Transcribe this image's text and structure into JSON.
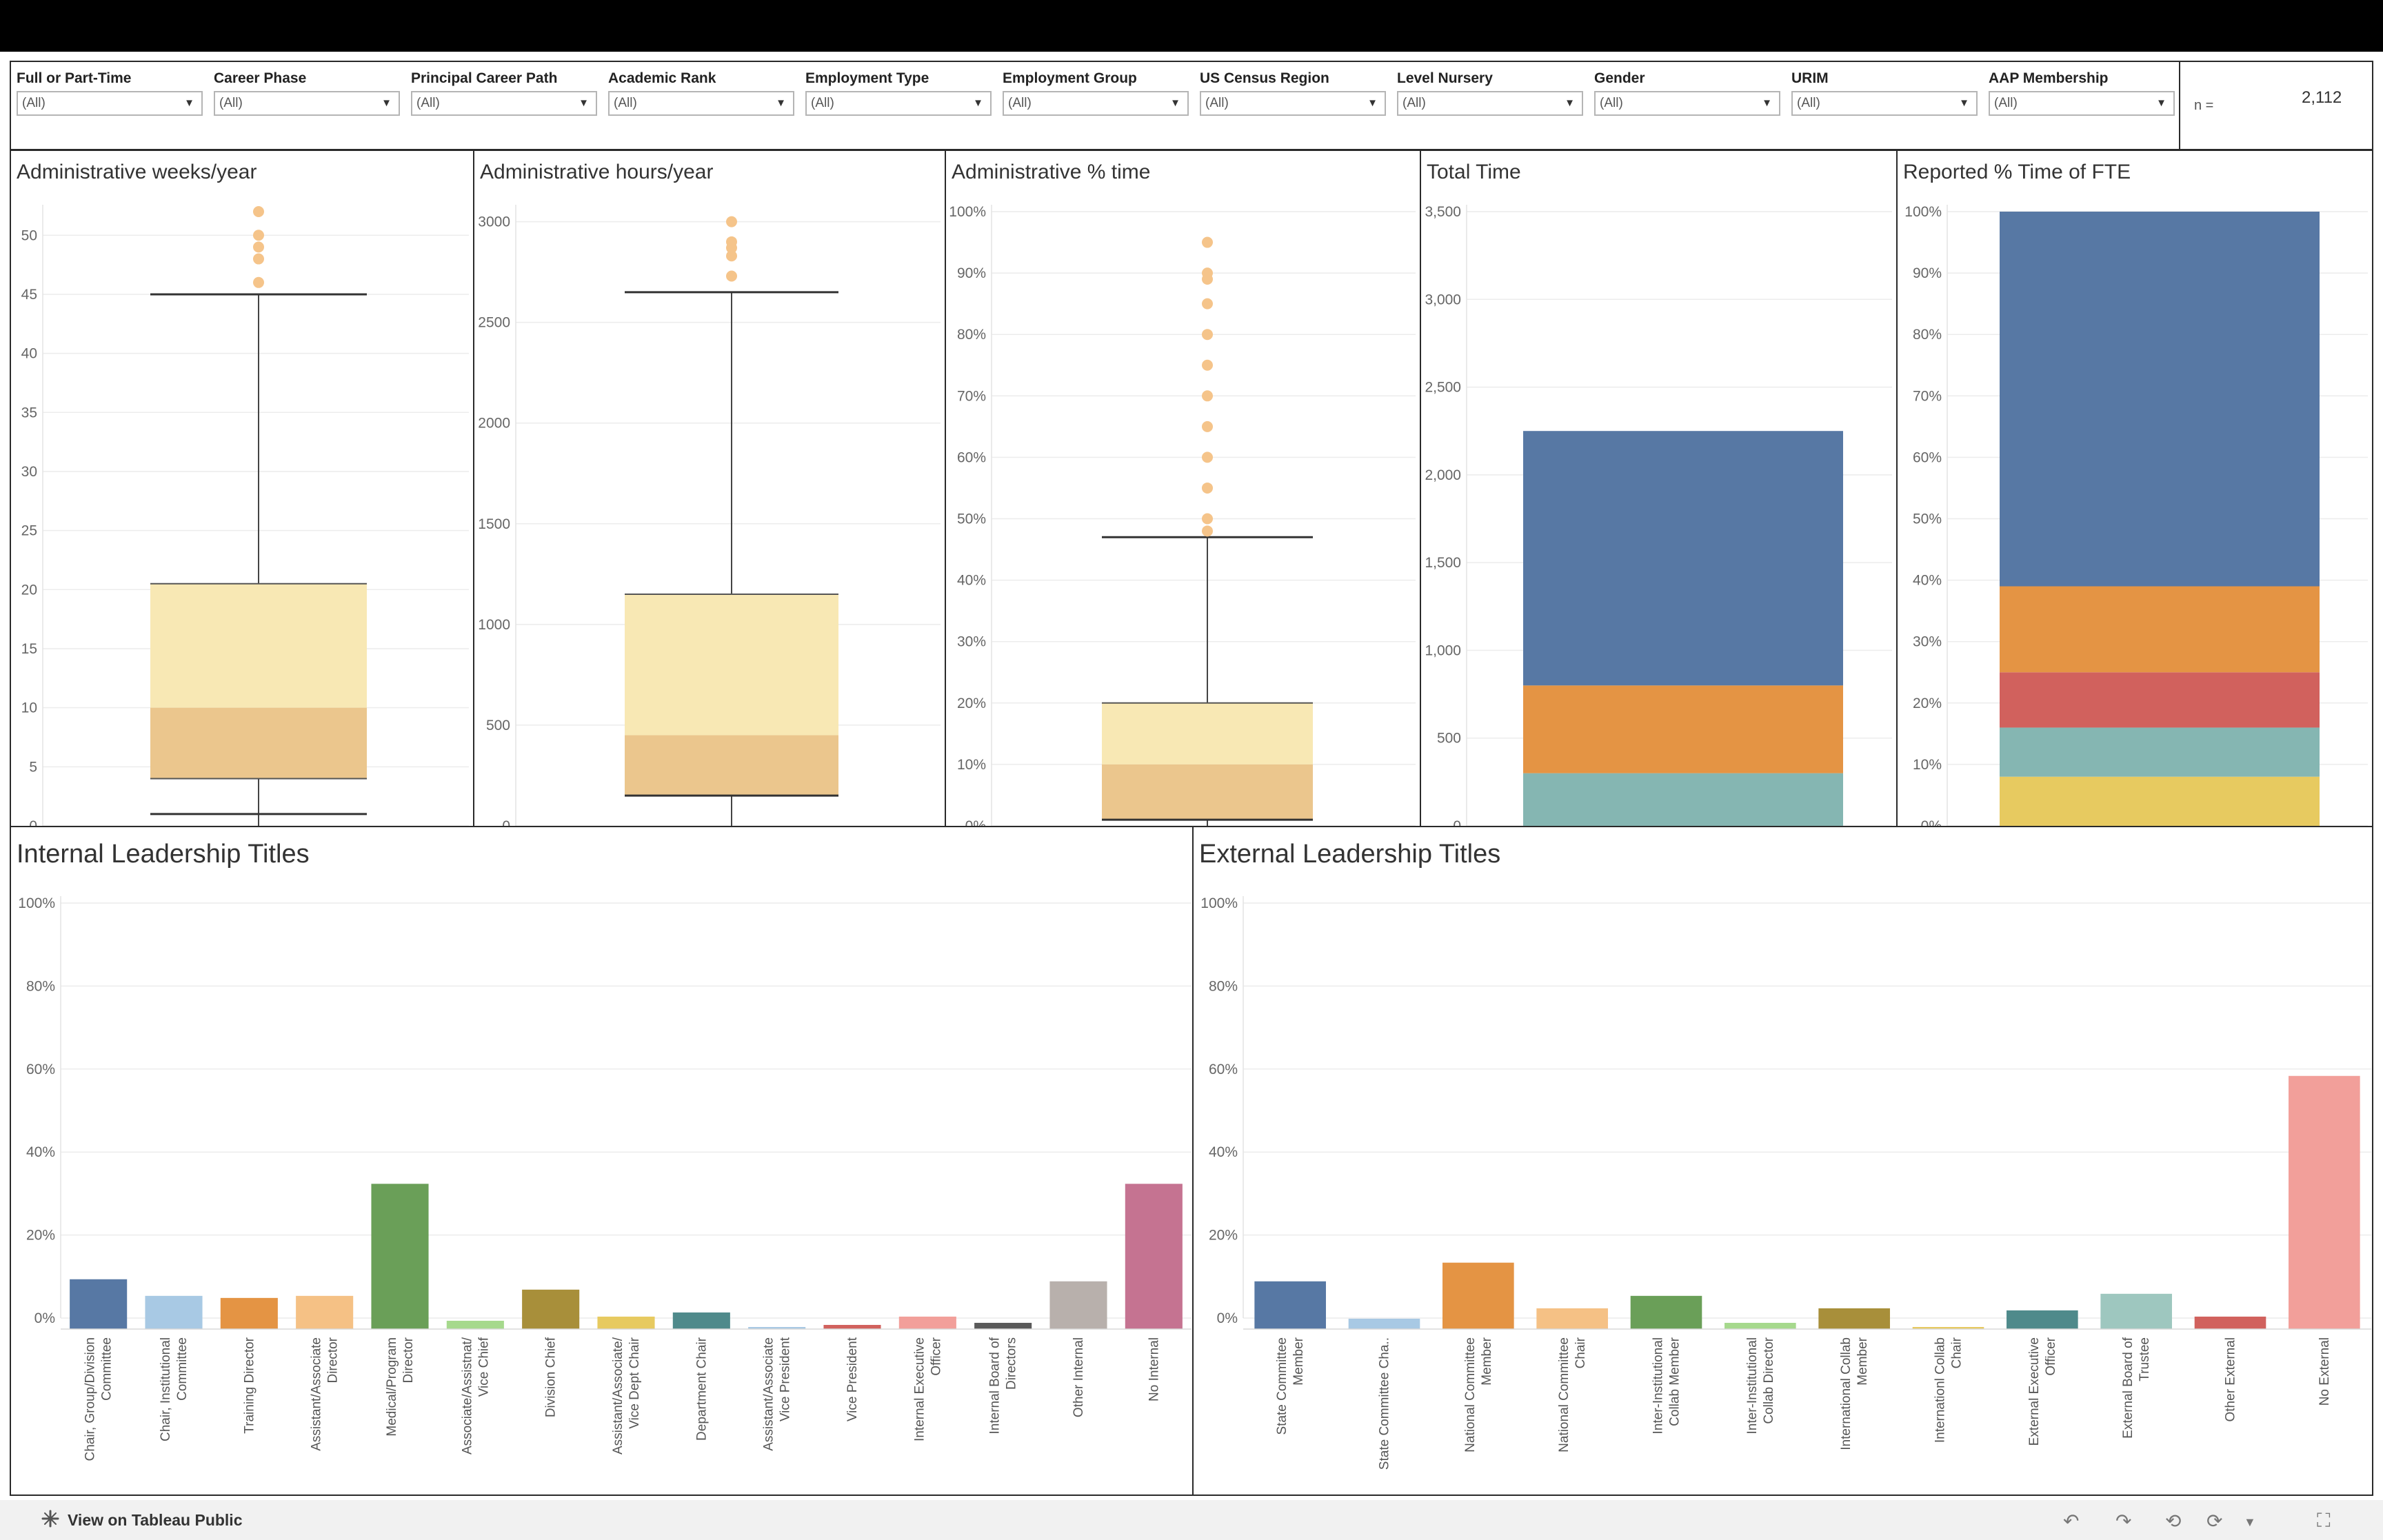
{
  "filters": [
    {
      "label": "Full or Part-Time",
      "value": "(All)"
    },
    {
      "label": "Career Phase",
      "value": "(All)"
    },
    {
      "label": "Principal Career Path",
      "value": "(All)"
    },
    {
      "label": "Academic Rank",
      "value": "(All)"
    },
    {
      "label": "Employment Type",
      "value": "(All)"
    },
    {
      "label": "Employment Group",
      "value": "(All)"
    },
    {
      "label": "US Census Region",
      "value": "(All)"
    },
    {
      "label": "Level Nursery",
      "value": "(All)"
    },
    {
      "label": "Gender",
      "value": "(All)"
    },
    {
      "label": "URIM",
      "value": "(All)"
    },
    {
      "label": "AAP Membership",
      "value": "(All)"
    }
  ],
  "n_label": "n =",
  "n_value": "2,112",
  "footer": {
    "link_label": "View on Tableau Public"
  },
  "colors": {
    "box_upper": "#f8e8b4",
    "box_lower": "#ebc68d",
    "outlier": "#f5c48a",
    "blue": "#5778a4",
    "orange": "#e49444",
    "red": "#d1615d",
    "teal": "#85b6b2",
    "yellow": "#e7ca60"
  },
  "chart_data": [
    {
      "type": "box",
      "title": "Administrative weeks/year",
      "ylim": [
        0,
        52
      ],
      "yticks": [
        0,
        5,
        10,
        15,
        20,
        25,
        30,
        35,
        40,
        45,
        50
      ],
      "tick_labels": [
        "0",
        "5",
        "10",
        "15",
        "20",
        "25",
        "30",
        "35",
        "40",
        "45",
        "50"
      ],
      "whisker_low": 1,
      "q1": 4,
      "median": 10,
      "q3": 20.5,
      "whisker_high": 45,
      "outliers": [
        46,
        48,
        49,
        50,
        52
      ]
    },
    {
      "type": "box",
      "title": "Administrative hours/year",
      "ylim": [
        0,
        3050
      ],
      "yticks": [
        0,
        500,
        1000,
        1500,
        2000,
        2500,
        3000
      ],
      "tick_labels": [
        "0",
        "500",
        "1000",
        "1500",
        "2000",
        "2500",
        "3000"
      ],
      "whisker_low": 150,
      "q1": 150,
      "median": 450,
      "q3": 1150,
      "whisker_high": 2650,
      "outliers": [
        2730,
        2830,
        2870,
        2900,
        3000
      ]
    },
    {
      "type": "box",
      "title": "Administrative % time",
      "ylim": [
        0,
        100
      ],
      "yticks": [
        0,
        10,
        20,
        30,
        40,
        50,
        60,
        70,
        80,
        90,
        100
      ],
      "tick_labels": [
        "0%",
        "10%",
        "20%",
        "30%",
        "40%",
        "50%",
        "60%",
        "70%",
        "80%",
        "90%",
        "100%"
      ],
      "whisker_low": 1,
      "q1": 1,
      "median": 10,
      "q3": 20,
      "whisker_high": 47,
      "outliers": [
        48,
        50,
        55,
        60,
        65,
        70,
        75,
        80,
        85,
        89,
        90,
        95
      ]
    },
    {
      "type": "stacked_bar",
      "title": "Total Time",
      "ylim": [
        0,
        3500
      ],
      "yticks": [
        0,
        500,
        1000,
        1500,
        2000,
        2500,
        3000,
        3500
      ],
      "tick_labels": [
        "0",
        "500",
        "1,000",
        "1,500",
        "2,000",
        "2,500",
        "3,000",
        "3,500"
      ],
      "segments": [
        {
          "value": 300,
          "color": "#85b6b2"
        },
        {
          "value": 500,
          "color": "#e49444"
        },
        {
          "value": 1450,
          "color": "#5778a4"
        }
      ]
    },
    {
      "type": "stacked_bar",
      "title": "Reported % Time of FTE",
      "ylim": [
        0,
        100
      ],
      "yticks": [
        0,
        10,
        20,
        30,
        40,
        50,
        60,
        70,
        80,
        90,
        100
      ],
      "tick_labels": [
        "0%",
        "10%",
        "20%",
        "30%",
        "40%",
        "50%",
        "60%",
        "70%",
        "80%",
        "90%",
        "100%"
      ],
      "segments": [
        {
          "value": 8,
          "color": "#e7ca60"
        },
        {
          "value": 8,
          "color": "#85b6b2"
        },
        {
          "value": 9,
          "color": "#d1615d"
        },
        {
          "value": 14,
          "color": "#e49444"
        },
        {
          "value": 61,
          "color": "#5778a4"
        }
      ]
    },
    {
      "type": "bar",
      "title": "Internal Leadership Titles",
      "ylim": [
        0,
        100
      ],
      "yticks": [
        0,
        20,
        40,
        60,
        80,
        100
      ],
      "tick_labels": [
        "0%",
        "20%",
        "40%",
        "60%",
        "80%",
        "100%"
      ],
      "categories": [
        [
          "Chair, Group/Division",
          "Committee"
        ],
        [
          "Chair, Institutional",
          "Committee"
        ],
        [
          "Training Director"
        ],
        [
          "Assistant/Associate",
          "Director"
        ],
        [
          "Medical/Program",
          "Director"
        ],
        [
          "Associate/Assistnat/",
          "Vice Chief"
        ],
        [
          "Division Chief"
        ],
        [
          "Assistant/Associate/",
          "Vice Dept Chair"
        ],
        [
          "Department Chair"
        ],
        [
          "Assistant/Associate",
          "Vice President"
        ],
        [
          "Vice President"
        ],
        [
          "Internal Executive",
          "Officer"
        ],
        [
          "Internal Board of",
          "Directors"
        ],
        [
          "Other Internal"
        ],
        [
          "No Internal"
        ]
      ],
      "values": [
        12,
        8,
        7.5,
        8,
        35,
        2,
        9.5,
        3,
        4,
        0,
        1,
        3,
        1.5,
        11.5,
        35
      ],
      "colors": [
        "#5778a4",
        "#a8c9e4",
        "#e49444",
        "#f5c185",
        "#6a9f58",
        "#a6d98d",
        "#a88f3a",
        "#e7ca60",
        "#4f8a8b",
        "#a8c9e4",
        "#d1615d",
        "#f29f9a",
        "#5a5a5a",
        "#b8b0ac",
        "#c57391"
      ]
    },
    {
      "type": "bar",
      "title": "External Leadership Titles",
      "ylim": [
        0,
        100
      ],
      "yticks": [
        0,
        20,
        40,
        60,
        80,
        100
      ],
      "tick_labels": [
        "0%",
        "20%",
        "40%",
        "60%",
        "80%",
        "100%"
      ],
      "categories": [
        [
          "State Committee",
          "Member"
        ],
        [
          "State Committee Cha.."
        ],
        [
          "National Committee",
          "Member"
        ],
        [
          "National Committee",
          "Chair"
        ],
        [
          "Inter-Institutional",
          "Collab Member"
        ],
        [
          "Inter-Institutional",
          "Collab Director"
        ],
        [
          "International Collab",
          "Member"
        ],
        [
          "Internationl Collab",
          "Chair"
        ],
        [
          "External Executive",
          "Officer"
        ],
        [
          "External Board of",
          "Trustee"
        ],
        [
          "Other External"
        ],
        [
          "No External"
        ]
      ],
      "values": [
        11.5,
        2.5,
        16,
        5,
        8,
        1.5,
        5,
        0.5,
        4.5,
        8.5,
        3,
        61
      ],
      "colors": [
        "#5778a4",
        "#a8c9e4",
        "#e49444",
        "#f5c185",
        "#6a9f58",
        "#a6d98d",
        "#a88f3a",
        "#e7ca60",
        "#4f8a8b",
        "#9ec7bf",
        "#d1615d",
        "#f29f9a"
      ]
    }
  ]
}
